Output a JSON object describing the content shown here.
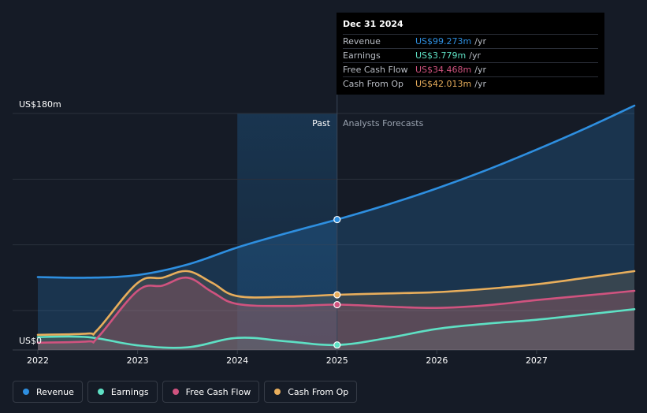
{
  "chart_data": {
    "type": "line",
    "title": "",
    "xlabel": "",
    "ylabel": "",
    "y_axis_top_label": "US$180m",
    "y_axis_bottom_label": "US$0",
    "ylim": [
      0,
      180
    ],
    "xlim": [
      2022.0,
      2027.98
    ],
    "x_ticks": [
      2022,
      2023,
      2024,
      2025,
      2026,
      2027
    ],
    "x_tick_labels": [
      "2022",
      "2023",
      "2024",
      "2025",
      "2026",
      "2027"
    ],
    "past_label": "Past",
    "forecast_label": "Analysts Forecasts",
    "divider_x": 2025.0,
    "highlight_start_x": 2024.0,
    "series": [
      {
        "name": "Revenue",
        "color": "#2e8fe0",
        "x": [
          2022.0,
          2022.5,
          2023.0,
          2023.5,
          2024.0,
          2024.5,
          2025.0,
          2025.5,
          2026.0,
          2026.5,
          2027.0,
          2027.5,
          2027.98
        ],
        "values": [
          55.5,
          55.0,
          57.0,
          65.0,
          78.0,
          89.0,
          99.3,
          110.5,
          123.0,
          137.0,
          152.5,
          169.0,
          186.0
        ]
      },
      {
        "name": "Earnings",
        "color": "#5ee0c4",
        "x": [
          2022.0,
          2022.5,
          2023.0,
          2023.5,
          2024.0,
          2024.5,
          2025.0,
          2025.5,
          2026.0,
          2026.5,
          2027.0,
          2027.5,
          2027.98
        ],
        "values": [
          9.8,
          9.8,
          3.5,
          2.0,
          9.2,
          6.5,
          3.8,
          9.0,
          16.0,
          20.0,
          23.0,
          27.0,
          31.0
        ]
      },
      {
        "name": "Free Cash Flow",
        "color": "#d0537f",
        "x": [
          2022.0,
          2022.5,
          2022.6,
          2023.0,
          2023.25,
          2023.5,
          2023.75,
          2024.0,
          2024.5,
          2025.0,
          2025.5,
          2026.0,
          2026.5,
          2027.0,
          2027.5,
          2027.98
        ],
        "values": [
          5.5,
          6.5,
          9.5,
          45.0,
          49.0,
          55.0,
          44.0,
          35.0,
          33.5,
          34.5,
          33.0,
          32.0,
          34.0,
          38.0,
          41.5,
          45.0
        ]
      },
      {
        "name": "Cash From Op",
        "color": "#e8ae5c",
        "x": [
          2022.0,
          2022.5,
          2022.6,
          2023.0,
          2023.25,
          2023.5,
          2023.75,
          2024.0,
          2024.5,
          2025.0,
          2025.5,
          2026.0,
          2026.5,
          2027.0,
          2027.5,
          2027.98
        ],
        "values": [
          11.5,
          12.5,
          15.5,
          51.0,
          55.0,
          60.0,
          51.0,
          41.0,
          40.5,
          42.0,
          43.0,
          44.0,
          46.5,
          50.0,
          55.0,
          60.0
        ]
      }
    ],
    "markers": [
      {
        "series": "Revenue",
        "x": 2025.0,
        "y": 99.273
      },
      {
        "series": "Earnings",
        "x": 2025.0,
        "y": 3.779
      },
      {
        "series": "Free Cash Flow",
        "x": 2025.0,
        "y": 34.468
      },
      {
        "series": "Cash From Op",
        "x": 2025.0,
        "y": 42.013
      }
    ]
  },
  "tooltip": {
    "date": "Dec 31 2024",
    "rows": [
      {
        "name": "Revenue",
        "value": "US$99.273m",
        "unit": "/yr",
        "color": "#2e8fe0"
      },
      {
        "name": "Earnings",
        "value": "US$3.779m",
        "unit": "/yr",
        "color": "#5ee0c4"
      },
      {
        "name": "Free Cash Flow",
        "value": "US$34.468m",
        "unit": "/yr",
        "color": "#d0537f"
      },
      {
        "name": "Cash From Op",
        "value": "US$42.013m",
        "unit": "/yr",
        "color": "#e8ae5c"
      }
    ]
  },
  "legend": {
    "items": [
      {
        "label": "Revenue",
        "color": "#2e8fe0"
      },
      {
        "label": "Earnings",
        "color": "#5ee0c4"
      },
      {
        "label": "Free Cash Flow",
        "color": "#d0537f"
      },
      {
        "label": "Cash From Op",
        "color": "#e8ae5c"
      }
    ]
  }
}
